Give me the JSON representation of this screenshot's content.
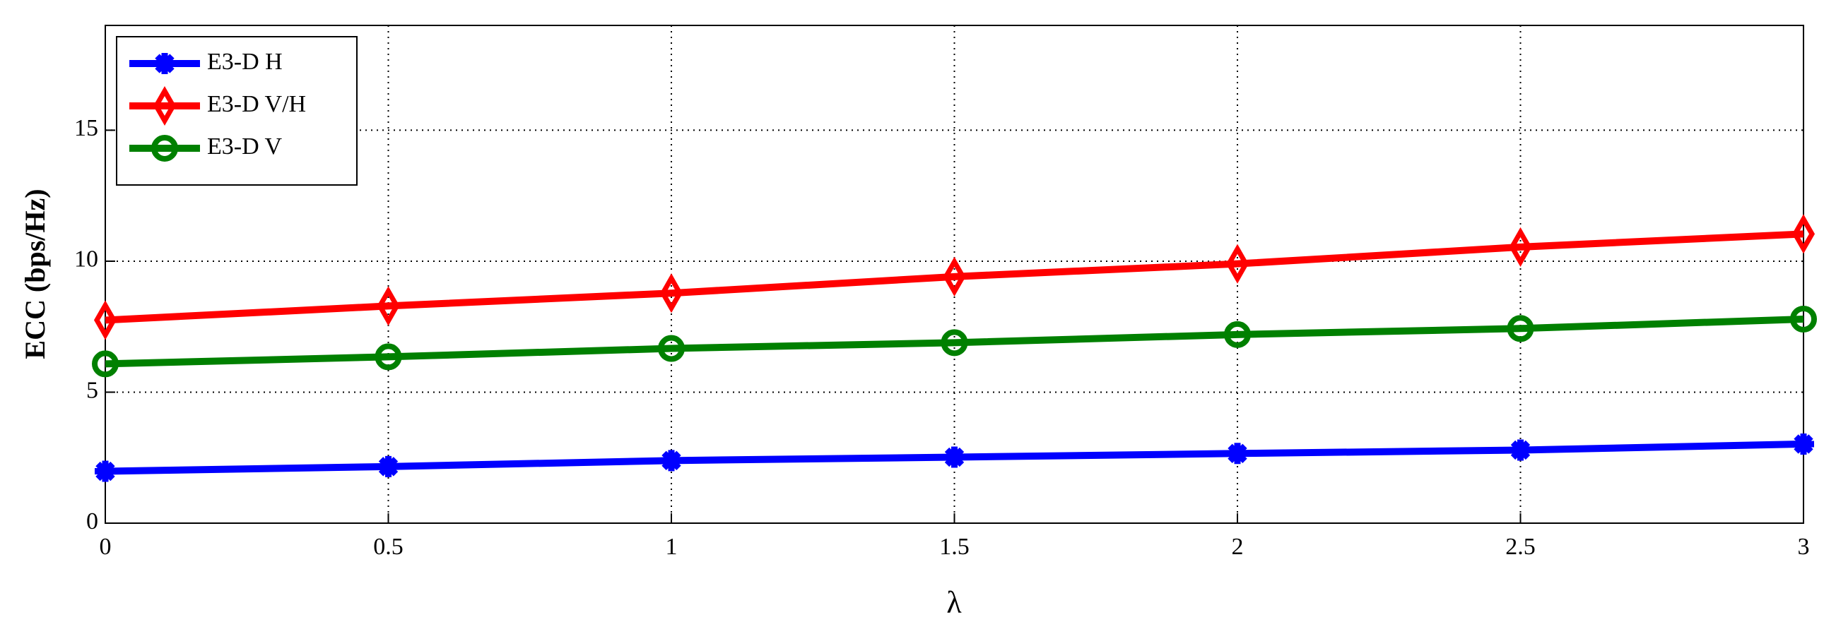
{
  "chart_data": {
    "type": "line",
    "x_label": "λ",
    "y_label": "ECC (bps/Hz)",
    "x": [
      0,
      0.5,
      1,
      1.5,
      2,
      2.5,
      3
    ],
    "series": [
      {
        "name": "E3-D H",
        "color": "#0000ff",
        "marker": "star",
        "values": [
          1.98,
          2.16,
          2.39,
          2.52,
          2.66,
          2.79,
          3.02
        ]
      },
      {
        "name": "E3-D V/H",
        "color": "#ff0000",
        "marker": "diamond",
        "values": [
          7.75,
          8.29,
          8.78,
          9.41,
          9.9,
          10.54,
          11.04
        ]
      },
      {
        "name": "E3-D V",
        "color": "#008000",
        "marker": "circle",
        "values": [
          6.08,
          6.35,
          6.67,
          6.89,
          7.2,
          7.43,
          7.79
        ]
      }
    ],
    "xlim": [
      0,
      3
    ],
    "xticks": [
      0,
      0.5,
      1,
      1.5,
      2,
      2.5,
      3
    ],
    "ylim": [
      0,
      19
    ],
    "yticks": [
      0,
      5,
      10,
      15
    ],
    "grid": true,
    "legend": "upper-left"
  }
}
